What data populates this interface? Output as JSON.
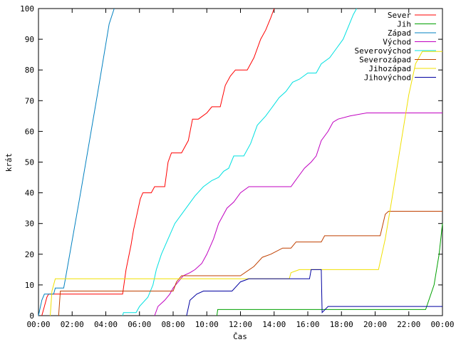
{
  "chart_data": {
    "type": "line",
    "title": "",
    "xlabel": "Čas",
    "ylabel": "krát",
    "xlim": [
      0,
      24
    ],
    "ylim": [
      0,
      100
    ],
    "x_tick_labels": [
      "00:00",
      "02:00",
      "04:00",
      "06:00",
      "08:00",
      "10:00",
      "12:00",
      "14:00",
      "16:00",
      "18:00",
      "20:00",
      "22:00",
      "00:00"
    ],
    "y_tick_labels": [
      "0",
      "10",
      "20",
      "30",
      "40",
      "50",
      "60",
      "70",
      "80",
      "90",
      "100"
    ],
    "grid": false,
    "legend_position": "top-right",
    "series": [
      {
        "name": "Sever",
        "color": "#ff0000",
        "points": [
          [
            0.2,
            0
          ],
          [
            0.35,
            3
          ],
          [
            0.5,
            6
          ],
          [
            0.6,
            7
          ],
          [
            5.0,
            7
          ],
          [
            5.2,
            15
          ],
          [
            5.5,
            23
          ],
          [
            5.65,
            28
          ],
          [
            5.85,
            33
          ],
          [
            6.05,
            38
          ],
          [
            6.2,
            40
          ],
          [
            6.7,
            40
          ],
          [
            6.9,
            42
          ],
          [
            7.5,
            42
          ],
          [
            7.7,
            50
          ],
          [
            7.9,
            53
          ],
          [
            8.5,
            53
          ],
          [
            8.9,
            57
          ],
          [
            9.15,
            64
          ],
          [
            9.5,
            64
          ],
          [
            10.0,
            66
          ],
          [
            10.3,
            68
          ],
          [
            10.8,
            68
          ],
          [
            11.1,
            75
          ],
          [
            11.4,
            78
          ],
          [
            11.7,
            80
          ],
          [
            12.4,
            80
          ],
          [
            12.8,
            84
          ],
          [
            13.2,
            90
          ],
          [
            13.5,
            93
          ],
          [
            13.8,
            97
          ],
          [
            14.0,
            100
          ]
        ]
      },
      {
        "name": "Jih",
        "color": "#00a000",
        "points": [
          [
            10.6,
            0
          ],
          [
            10.65,
            2
          ],
          [
            23.0,
            2
          ],
          [
            23.5,
            10
          ],
          [
            23.8,
            20
          ],
          [
            24.0,
            30
          ]
        ]
      },
      {
        "name": "Západ",
        "color": "#0080c0",
        "points": [
          [
            0.0,
            0
          ],
          [
            0.2,
            5
          ],
          [
            0.35,
            7
          ],
          [
            0.9,
            7
          ],
          [
            1.0,
            9
          ],
          [
            1.5,
            9
          ],
          [
            1.6,
            12
          ],
          [
            2.5,
            40
          ],
          [
            3.5,
            72
          ],
          [
            4.2,
            95
          ],
          [
            4.5,
            100
          ]
        ]
      },
      {
        "name": "Východ",
        "color": "#c000c0",
        "points": [
          [
            6.9,
            0
          ],
          [
            7.1,
            3
          ],
          [
            7.5,
            5
          ],
          [
            7.8,
            7
          ],
          [
            8.0,
            9
          ],
          [
            8.3,
            11
          ],
          [
            8.6,
            13
          ],
          [
            9.0,
            14
          ],
          [
            9.3,
            15
          ],
          [
            9.7,
            17
          ],
          [
            10.0,
            20
          ],
          [
            10.4,
            25
          ],
          [
            10.7,
            30
          ],
          [
            10.9,
            32
          ],
          [
            11.2,
            35
          ],
          [
            11.6,
            37
          ],
          [
            12.0,
            40
          ],
          [
            12.5,
            42
          ],
          [
            15.0,
            42
          ],
          [
            15.4,
            45
          ],
          [
            15.8,
            48
          ],
          [
            16.2,
            50
          ],
          [
            16.5,
            52
          ],
          [
            16.8,
            57
          ],
          [
            17.2,
            60
          ],
          [
            17.5,
            63
          ],
          [
            17.8,
            64
          ],
          [
            18.5,
            65
          ],
          [
            19.5,
            66
          ],
          [
            24.0,
            66
          ]
        ]
      },
      {
        "name": "Severovýchod",
        "color": "#00e0e0",
        "points": [
          [
            5.0,
            0
          ],
          [
            5.05,
            1
          ],
          [
            5.8,
            1
          ],
          [
            6.0,
            3
          ],
          [
            6.5,
            6
          ],
          [
            6.8,
            10
          ],
          [
            7.0,
            15
          ],
          [
            7.3,
            20
          ],
          [
            7.7,
            25
          ],
          [
            8.1,
            30
          ],
          [
            8.5,
            33
          ],
          [
            8.9,
            36
          ],
          [
            9.3,
            39
          ],
          [
            9.8,
            42
          ],
          [
            10.3,
            44
          ],
          [
            10.7,
            45
          ],
          [
            11.0,
            47
          ],
          [
            11.3,
            48
          ],
          [
            11.6,
            52
          ],
          [
            12.2,
            52
          ],
          [
            12.6,
            56
          ],
          [
            13.0,
            62
          ],
          [
            13.5,
            65
          ],
          [
            13.9,
            68
          ],
          [
            14.3,
            71
          ],
          [
            14.7,
            73
          ],
          [
            15.1,
            76
          ],
          [
            15.5,
            77
          ],
          [
            16.0,
            79
          ],
          [
            16.5,
            79
          ],
          [
            16.8,
            82
          ],
          [
            17.3,
            84
          ],
          [
            17.7,
            87
          ],
          [
            18.1,
            90
          ],
          [
            18.4,
            94
          ],
          [
            18.7,
            98
          ],
          [
            18.9,
            100
          ]
        ]
      },
      {
        "name": "Severozápad",
        "color": "#c04000",
        "points": [
          [
            1.2,
            0
          ],
          [
            1.3,
            8
          ],
          [
            5.0,
            8
          ],
          [
            8.0,
            8
          ],
          [
            8.2,
            11
          ],
          [
            8.5,
            13
          ],
          [
            9.0,
            13
          ],
          [
            12.0,
            13
          ],
          [
            12.8,
            16
          ],
          [
            13.3,
            19
          ],
          [
            13.8,
            20
          ],
          [
            14.5,
            22
          ],
          [
            15.0,
            22
          ],
          [
            15.3,
            24
          ],
          [
            16.8,
            24
          ],
          [
            17.0,
            26
          ],
          [
            20.3,
            26
          ],
          [
            20.6,
            33
          ],
          [
            20.8,
            34
          ],
          [
            24.0,
            34
          ]
        ]
      },
      {
        "name": "Jihozápad",
        "color": "#f0e000",
        "points": [
          [
            0.7,
            0
          ],
          [
            0.8,
            8
          ],
          [
            1.0,
            12
          ],
          [
            5.0,
            12
          ],
          [
            12.5,
            12
          ],
          [
            14.9,
            12
          ],
          [
            15.0,
            14
          ],
          [
            15.5,
            15
          ],
          [
            20.2,
            15
          ],
          [
            20.6,
            25
          ],
          [
            21.0,
            38
          ],
          [
            21.5,
            55
          ],
          [
            22.0,
            72
          ],
          [
            22.4,
            82
          ],
          [
            22.8,
            86
          ],
          [
            24.0,
            86
          ]
        ]
      },
      {
        "name": "Jihovýchod",
        "color": "#0000a0",
        "points": [
          [
            8.8,
            0
          ],
          [
            9.0,
            5
          ],
          [
            9.4,
            7
          ],
          [
            9.8,
            8
          ],
          [
            11.5,
            8
          ],
          [
            12.0,
            11
          ],
          [
            12.5,
            12
          ],
          [
            16.1,
            12
          ],
          [
            16.2,
            15
          ],
          [
            16.8,
            15
          ],
          [
            16.85,
            1
          ],
          [
            17.2,
            3
          ],
          [
            24.0,
            3
          ]
        ]
      }
    ]
  }
}
